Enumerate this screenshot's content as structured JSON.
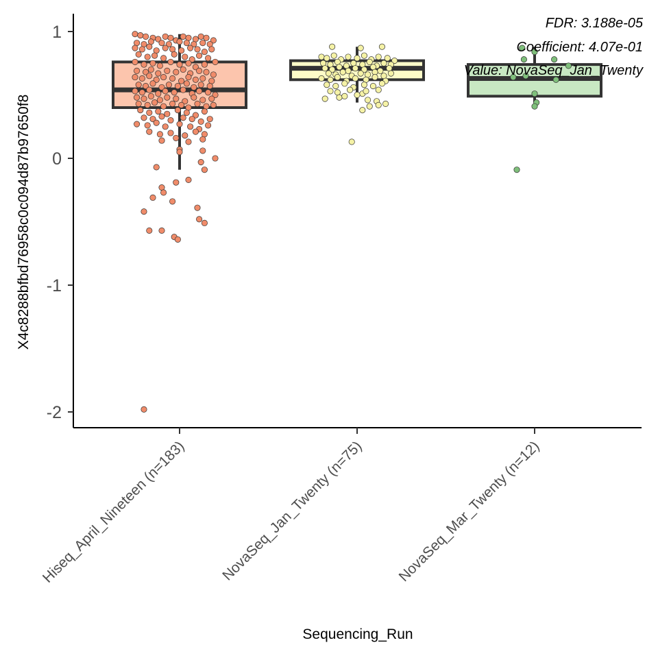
{
  "chart_data": {
    "type": "box",
    "title": "",
    "xlabel": "Sequencing_Run",
    "ylabel": "X4c8288bfbd76958c0c094d87b97650f8",
    "ylim": [
      -2.12,
      1.1
    ],
    "yticks": [
      1,
      0,
      -1,
      -2
    ],
    "ytick_labels": [
      "1",
      "0",
      "-1",
      "-2"
    ],
    "annotations": [
      "FDR: 3.188e-05",
      "Coefficient: 4.07e-01",
      "Value: NovaSeq_Jan_Twenty"
    ],
    "categories": [
      "Hiseq_April_Nineteen (n=183)",
      "NovaSeq_Jan_Twenty (n=75)",
      "NovaSeq_Mar_Twenty (n=12)"
    ],
    "boxes": [
      {
        "category": "Hiseq_April_Nineteen (n=183)",
        "color": "#fcc5ad",
        "point_color": "#f08c6a",
        "q1": 0.4,
        "median": 0.54,
        "q3": 0.76,
        "whisker_low": -0.09,
        "whisker_high": 0.98,
        "points": [
          [
            -0.25,
            0.98
          ],
          [
            -0.22,
            0.97
          ],
          [
            -0.19,
            0.96
          ],
          [
            -0.15,
            0.95
          ],
          [
            -0.12,
            0.94
          ],
          [
            -0.08,
            0.96
          ],
          [
            -0.05,
            0.95
          ],
          [
            -0.02,
            0.93
          ],
          [
            0.02,
            0.96
          ],
          [
            0.05,
            0.95
          ],
          [
            0.09,
            0.94
          ],
          [
            0.12,
            0.96
          ],
          [
            0.15,
            0.95
          ],
          [
            0.19,
            0.93
          ],
          [
            -0.24,
            0.91
          ],
          [
            -0.2,
            0.9
          ],
          [
            -0.16,
            0.92
          ],
          [
            -0.1,
            0.91
          ],
          [
            -0.06,
            0.9
          ],
          [
            0.0,
            0.92
          ],
          [
            0.04,
            0.91
          ],
          [
            0.08,
            0.9
          ],
          [
            0.13,
            0.91
          ],
          [
            0.17,
            0.9
          ],
          [
            -0.25,
            0.87
          ],
          [
            -0.21,
            0.86
          ],
          [
            -0.17,
            0.88
          ],
          [
            -0.13,
            0.85
          ],
          [
            -0.08,
            0.87
          ],
          [
            -0.04,
            0.86
          ],
          [
            0.01,
            0.85
          ],
          [
            0.06,
            0.87
          ],
          [
            0.1,
            0.86
          ],
          [
            0.14,
            0.84
          ],
          [
            0.18,
            0.86
          ],
          [
            -0.23,
            0.82
          ],
          [
            -0.18,
            0.8
          ],
          [
            -0.14,
            0.81
          ],
          [
            -0.09,
            0.79
          ],
          [
            -0.03,
            0.82
          ],
          [
            0.03,
            0.8
          ],
          [
            0.07,
            0.78
          ],
          [
            0.11,
            0.81
          ],
          [
            0.16,
            0.79
          ],
          [
            -0.25,
            0.76
          ],
          [
            -0.2,
            0.74
          ],
          [
            -0.15,
            0.75
          ],
          [
            -0.11,
            0.73
          ],
          [
            -0.05,
            0.76
          ],
          [
            0.0,
            0.74
          ],
          [
            0.05,
            0.75
          ],
          [
            0.09,
            0.72
          ],
          [
            0.14,
            0.74
          ],
          [
            0.2,
            0.76
          ],
          [
            -0.24,
            0.69
          ],
          [
            -0.19,
            0.68
          ],
          [
            -0.16,
            0.7
          ],
          [
            -0.12,
            0.67
          ],
          [
            -0.07,
            0.69
          ],
          [
            -0.02,
            0.68
          ],
          [
            0.02,
            0.7
          ],
          [
            0.06,
            0.67
          ],
          [
            0.11,
            0.69
          ],
          [
            0.15,
            0.68
          ],
          [
            0.19,
            0.66
          ],
          [
            -0.25,
            0.64
          ],
          [
            -0.21,
            0.63
          ],
          [
            -0.17,
            0.65
          ],
          [
            -0.13,
            0.62
          ],
          [
            -0.09,
            0.64
          ],
          [
            -0.04,
            0.63
          ],
          [
            0.01,
            0.61
          ],
          [
            0.05,
            0.64
          ],
          [
            0.09,
            0.62
          ],
          [
            0.13,
            0.63
          ],
          [
            0.18,
            0.61
          ],
          [
            -0.23,
            0.58
          ],
          [
            -0.19,
            0.57
          ],
          [
            -0.15,
            0.59
          ],
          [
            -0.1,
            0.56
          ],
          [
            -0.06,
            0.58
          ],
          [
            -0.01,
            0.57
          ],
          [
            0.04,
            0.59
          ],
          [
            0.08,
            0.56
          ],
          [
            0.12,
            0.58
          ],
          [
            0.17,
            0.57
          ],
          [
            -0.25,
            0.53
          ],
          [
            -0.21,
            0.52
          ],
          [
            -0.17,
            0.54
          ],
          [
            -0.12,
            0.51
          ],
          [
            -0.08,
            0.53
          ],
          [
            -0.03,
            0.52
          ],
          [
            0.02,
            0.54
          ],
          [
            0.07,
            0.51
          ],
          [
            0.11,
            0.53
          ],
          [
            0.16,
            0.52
          ],
          [
            0.2,
            0.5
          ],
          [
            -0.24,
            0.48
          ],
          [
            -0.2,
            0.47
          ],
          [
            -0.16,
            0.49
          ],
          [
            -0.11,
            0.46
          ],
          [
            -0.07,
            0.48
          ],
          [
            -0.02,
            0.47
          ],
          [
            0.03,
            0.45
          ],
          [
            0.08,
            0.48
          ],
          [
            0.13,
            0.46
          ],
          [
            0.18,
            0.47
          ],
          [
            -0.23,
            0.43
          ],
          [
            -0.18,
            0.42
          ],
          [
            -0.14,
            0.44
          ],
          [
            -0.09,
            0.41
          ],
          [
            -0.04,
            0.43
          ],
          [
            0.01,
            0.42
          ],
          [
            0.05,
            0.4
          ],
          [
            0.1,
            0.43
          ],
          [
            0.15,
            0.41
          ],
          [
            0.19,
            0.42
          ],
          [
            -0.22,
            0.38
          ],
          [
            -0.17,
            0.36
          ],
          [
            -0.12,
            0.37
          ],
          [
            -0.07,
            0.35
          ],
          [
            -0.01,
            0.38
          ],
          [
            0.04,
            0.36
          ],
          [
            0.09,
            0.34
          ],
          [
            0.14,
            0.37
          ],
          [
            -0.2,
            0.32
          ],
          [
            -0.15,
            0.31
          ],
          [
            -0.1,
            0.33
          ],
          [
            -0.05,
            0.3
          ],
          [
            0.02,
            0.32
          ],
          [
            0.07,
            0.31
          ],
          [
            0.12,
            0.29
          ],
          [
            0.17,
            0.31
          ],
          [
            -0.24,
            0.27
          ],
          [
            -0.18,
            0.26
          ],
          [
            -0.13,
            0.28
          ],
          [
            -0.08,
            0.25
          ],
          [
            0.0,
            0.27
          ],
          [
            0.06,
            0.25
          ],
          [
            0.11,
            0.23
          ],
          [
            0.16,
            0.26
          ],
          [
            -0.17,
            0.21
          ],
          [
            -0.11,
            0.19
          ],
          [
            -0.05,
            0.2
          ],
          [
            0.03,
            0.18
          ],
          [
            0.09,
            0.21
          ],
          [
            0.14,
            0.19
          ],
          [
            -0.1,
            0.14
          ],
          [
            -0.02,
            0.16
          ],
          [
            0.05,
            0.13
          ],
          [
            0.13,
            0.15
          ],
          [
            0.0,
            0.07
          ],
          [
            0.0,
            0.05
          ],
          [
            0.13,
            0.06
          ],
          [
            0.2,
            0.0
          ],
          [
            0.14,
            -0.09
          ],
          [
            0.12,
            -0.03
          ],
          [
            -0.13,
            -0.07
          ],
          [
            -0.02,
            -0.19
          ],
          [
            0.05,
            -0.17
          ],
          [
            -0.1,
            -0.23
          ],
          [
            -0.09,
            -0.27
          ],
          [
            -0.15,
            -0.31
          ],
          [
            -0.04,
            -0.34
          ],
          [
            -0.2,
            -0.42
          ],
          [
            0.1,
            -0.39
          ],
          [
            0.11,
            -0.48
          ],
          [
            0.14,
            -0.51
          ],
          [
            -0.17,
            -0.57
          ],
          [
            -0.1,
            -0.57
          ],
          [
            -0.03,
            -0.62
          ],
          [
            -0.01,
            -0.64
          ],
          [
            -0.2,
            -1.98
          ]
        ]
      },
      {
        "category": "NovaSeq_Jan_Twenty (n=75)",
        "color": "#fdfcc8",
        "point_color": "#f5f2a6",
        "q1": 0.62,
        "median": 0.71,
        "q3": 0.77,
        "whisker_low": 0.44,
        "whisker_high": 0.88,
        "points": [
          [
            -0.14,
            0.88
          ],
          [
            0.02,
            0.87
          ],
          [
            0.14,
            0.88
          ],
          [
            -0.2,
            0.8
          ],
          [
            -0.17,
            0.79
          ],
          [
            -0.13,
            0.81
          ],
          [
            -0.09,
            0.78
          ],
          [
            -0.05,
            0.8
          ],
          [
            0.0,
            0.79
          ],
          [
            0.04,
            0.81
          ],
          [
            0.08,
            0.78
          ],
          [
            0.12,
            0.8
          ],
          [
            0.17,
            0.79
          ],
          [
            0.21,
            0.77
          ],
          [
            -0.19,
            0.75
          ],
          [
            -0.15,
            0.74
          ],
          [
            -0.11,
            0.76
          ],
          [
            -0.06,
            0.73
          ],
          [
            -0.02,
            0.75
          ],
          [
            0.03,
            0.74
          ],
          [
            0.07,
            0.76
          ],
          [
            0.11,
            0.73
          ],
          [
            0.15,
            0.75
          ],
          [
            0.19,
            0.74
          ],
          [
            -0.18,
            0.71
          ],
          [
            -0.14,
            0.7
          ],
          [
            -0.1,
            0.72
          ],
          [
            -0.05,
            0.69
          ],
          [
            -0.01,
            0.71
          ],
          [
            0.04,
            0.7
          ],
          [
            0.09,
            0.72
          ],
          [
            0.13,
            0.69
          ],
          [
            0.18,
            0.71
          ],
          [
            -0.16,
            0.67
          ],
          [
            -0.12,
            0.66
          ],
          [
            -0.08,
            0.68
          ],
          [
            -0.03,
            0.65
          ],
          [
            0.02,
            0.67
          ],
          [
            0.06,
            0.66
          ],
          [
            0.1,
            0.68
          ],
          [
            0.15,
            0.65
          ],
          [
            0.19,
            0.67
          ],
          [
            -0.2,
            0.63
          ],
          [
            -0.15,
            0.62
          ],
          [
            -0.11,
            0.64
          ],
          [
            -0.06,
            0.61
          ],
          [
            -0.01,
            0.63
          ],
          [
            0.05,
            0.62
          ],
          [
            0.1,
            0.64
          ],
          [
            0.16,
            0.61
          ],
          [
            -0.17,
            0.58
          ],
          [
            -0.12,
            0.57
          ],
          [
            -0.07,
            0.59
          ],
          [
            -0.02,
            0.56
          ],
          [
            0.04,
            0.58
          ],
          [
            0.09,
            0.57
          ],
          [
            0.14,
            0.59
          ],
          [
            -0.15,
            0.53
          ],
          [
            -0.11,
            0.52
          ],
          [
            -0.04,
            0.54
          ],
          [
            0.03,
            0.51
          ],
          [
            0.12,
            0.54
          ],
          [
            0.05,
            0.53
          ],
          [
            -0.18,
            0.47
          ],
          [
            -0.1,
            0.48
          ],
          [
            0.0,
            0.5
          ],
          [
            0.06,
            0.46
          ],
          [
            0.11,
            0.45
          ],
          [
            -0.07,
            0.49
          ],
          [
            0.07,
            0.41
          ],
          [
            0.03,
            0.38
          ],
          [
            0.16,
            0.43
          ],
          [
            0.12,
            0.42
          ],
          [
            -0.03,
            0.13
          ]
        ]
      },
      {
        "category": "NovaSeq_Mar_Twenty (n=12)",
        "color": "#c8e8c3",
        "point_color": "#7fbf7b",
        "q1": 0.49,
        "median": 0.63,
        "q3": 0.74,
        "whisker_low": 0.44,
        "whisker_high": 0.88,
        "points": [
          [
            -0.07,
            0.87
          ],
          [
            0.0,
            0.84
          ],
          [
            -0.06,
            0.78
          ],
          [
            0.11,
            0.78
          ],
          [
            -0.12,
            0.64
          ],
          [
            -0.05,
            0.65
          ],
          [
            0.12,
            0.62
          ],
          [
            0.19,
            0.73
          ],
          [
            0.0,
            0.51
          ],
          [
            0.01,
            0.44
          ],
          [
            0.0,
            0.41
          ],
          [
            -0.1,
            -0.09
          ]
        ]
      }
    ]
  }
}
